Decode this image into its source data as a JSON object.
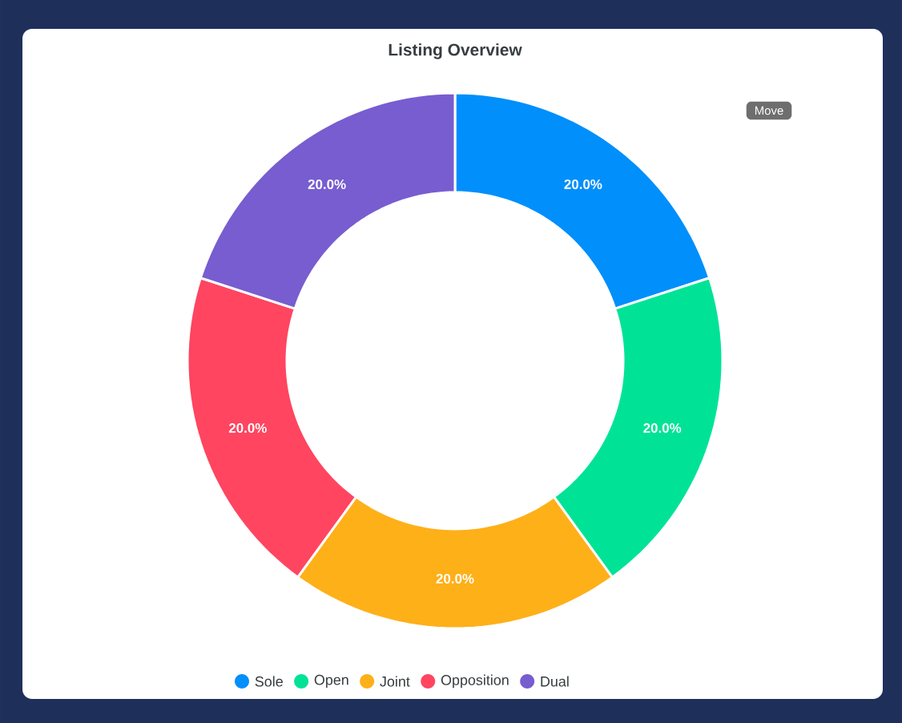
{
  "chart_data": {
    "type": "donut",
    "title": "Listing Overview",
    "categories": [
      "Sole",
      "Open",
      "Joint",
      "Opposition",
      "Dual"
    ],
    "values": [
      20,
      20,
      20,
      20,
      20
    ],
    "colors": [
      "#008ffb",
      "#00e396",
      "#feb019",
      "#ff4560",
      "#775dd0"
    ],
    "value_labels": [
      "20.0%",
      "20.0%",
      "20.0%",
      "20.0%",
      "20.0%"
    ],
    "legend": "bottom",
    "annotations": [
      "Move"
    ]
  }
}
